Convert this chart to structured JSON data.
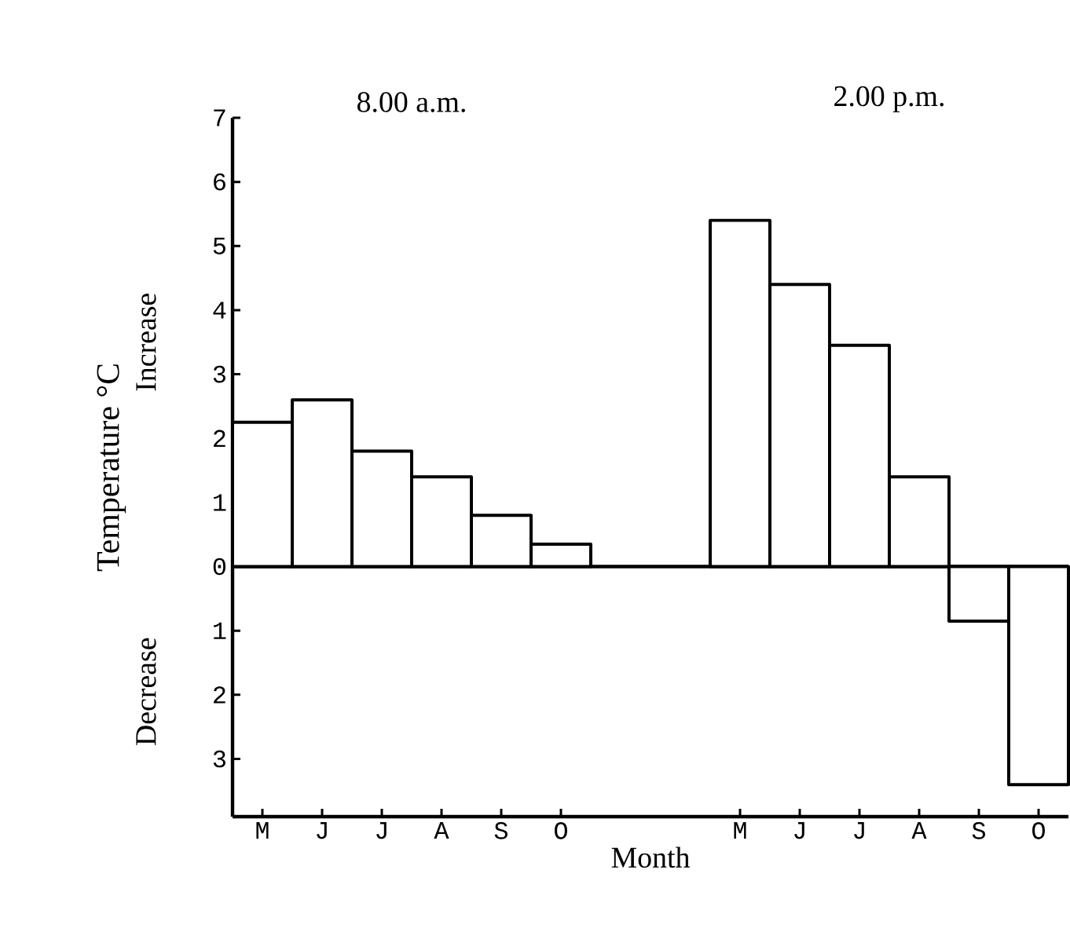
{
  "chart_data": {
    "type": "bar",
    "xlabel": "Month",
    "ylabel": "Temperature °C",
    "annotations": [
      "8.00 a.m.",
      "2.00 p.m.",
      "Increase",
      "Decrease"
    ],
    "categories": [
      "M",
      "J",
      "J",
      "A",
      "S",
      "O",
      null,
      null,
      "M",
      "J",
      "J",
      "A",
      "S",
      "O"
    ],
    "values": [
      2.25,
      2.6,
      1.8,
      1.4,
      0.8,
      0.35,
      null,
      null,
      5.4,
      4.4,
      3.45,
      1.4,
      -0.85,
      -3.4
    ],
    "color": "#ffffff",
    "ylim": [
      -3.9,
      7
    ],
    "yticks": [
      {
        "value": -3,
        "label": "3"
      },
      {
        "value": -2,
        "label": "2"
      },
      {
        "value": -1,
        "label": "1"
      },
      0,
      1,
      2,
      3,
      4,
      5,
      6,
      7
    ],
    "ref_lines": [
      {
        "axis": "y",
        "value": 0
      }
    ],
    "grid": false,
    "legend": false
  }
}
